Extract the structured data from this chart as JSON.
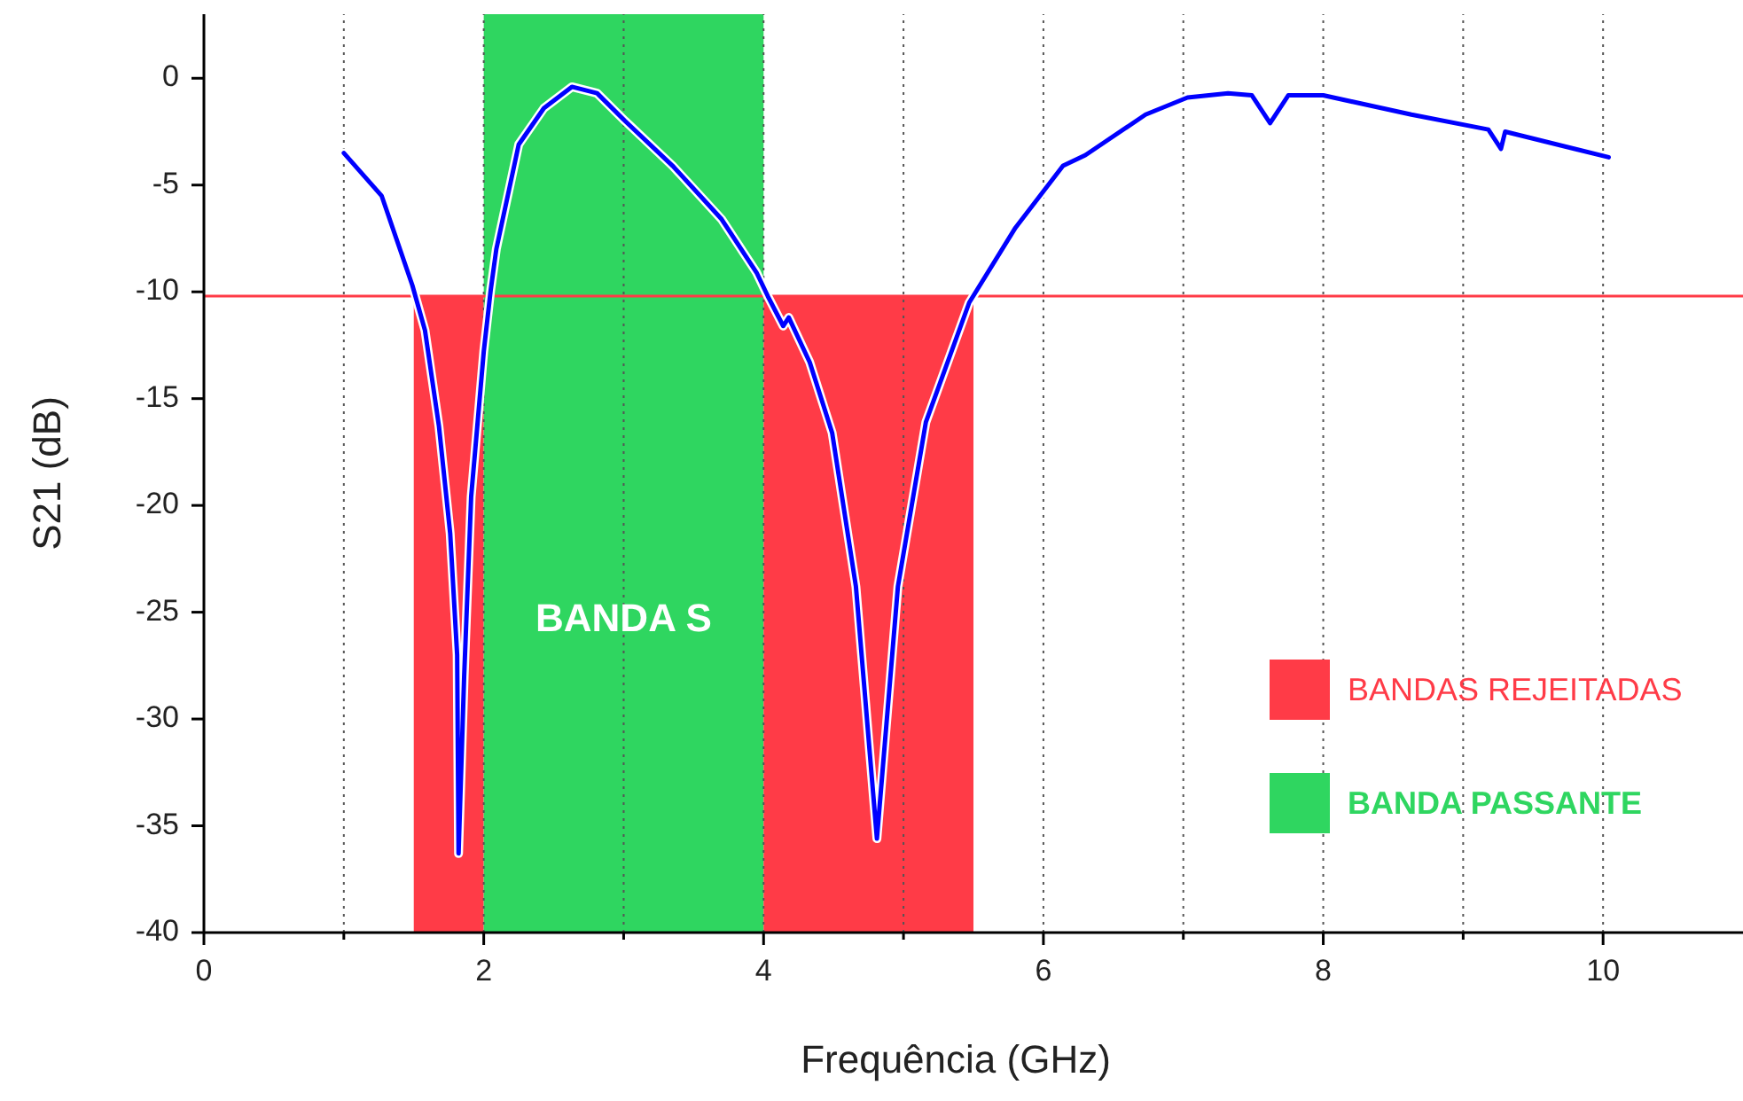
{
  "chart_data": {
    "type": "line",
    "xlabel": "Frequência (GHz)",
    "ylabel": "S21 (dB)",
    "xlim": [
      0,
      11
    ],
    "ylim": [
      -40,
      3
    ],
    "xticks": [
      0,
      {
        "value": 1,
        "label": null
      },
      2,
      {
        "value": 3,
        "label": null
      },
      4,
      {
        "value": 5,
        "label": null
      },
      6,
      {
        "value": 7,
        "label": null
      },
      8,
      {
        "value": 9,
        "label": null
      },
      10
    ],
    "yticks": [
      -40,
      -35,
      -30,
      -25,
      -20,
      -15,
      -10,
      -5,
      0
    ],
    "grid": "x",
    "legend": "right",
    "marker": "none",
    "line_style": "solid",
    "series": [
      {
        "color": "#0000ff",
        "x": [
          1.0,
          1.27,
          1.49,
          1.58,
          1.68,
          1.76,
          1.81,
          1.82,
          1.86,
          1.91,
          2.0,
          2.05,
          2.09,
          2.25,
          2.43,
          2.63,
          2.81,
          3.01,
          3.35,
          3.7,
          3.95,
          4.03,
          4.14,
          4.18,
          4.33,
          4.49,
          4.66,
          4.81,
          4.96,
          5.16,
          5.47,
          5.8,
          6.14,
          6.3,
          6.73,
          7.03,
          7.32,
          7.49,
          7.62,
          7.75,
          8.0,
          8.63,
          9.18,
          9.27,
          9.3,
          10.04
        ],
        "values": [
          -3.5,
          -5.5,
          -9.7,
          -11.8,
          -16.3,
          -21.3,
          -27,
          -36.3,
          -28,
          -19.6,
          -12.8,
          -9.9,
          -8,
          -3.1,
          -1.4,
          -0.4,
          -0.7,
          -2.0,
          -4.1,
          -6.6,
          -9.1,
          -10.2,
          -11.6,
          -11.2,
          -13.3,
          -16.6,
          -23.8,
          -35.6,
          -23.8,
          -16.1,
          -10.5,
          -7.0,
          -4.1,
          -3.6,
          -1.7,
          -0.9,
          -0.7,
          -0.8,
          -2.1,
          -0.8,
          -0.8,
          -1.7,
          -2.4,
          -3.3,
          -2.5,
          -3.7
        ]
      }
    ],
    "ref_lines": [
      {
        "axis": "y",
        "value": -10.2,
        "color": "#ff3b47"
      }
    ],
    "bands": [
      {
        "axis": "x",
        "from": 1.5,
        "to": 2,
        "label": "BANDAS REJEITADAS",
        "color": "#ff3b47"
      },
      {
        "axis": "x",
        "from": 2,
        "to": 4,
        "label": "BANDA PASSANTE",
        "color": "#2fd660"
      },
      {
        "axis": "x",
        "from": 4,
        "to": 5.5,
        "color": "#ff3b47"
      }
    ],
    "annotations": [
      "BANDA S"
    ]
  }
}
